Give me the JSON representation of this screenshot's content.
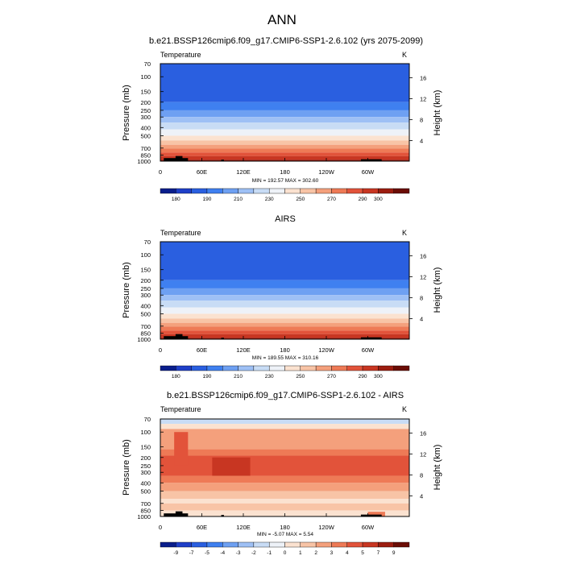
{
  "page": {
    "title": "ANN"
  },
  "panels": [
    {
      "title": "b.e21.BSSP126cmip6.f09_g17.CMIP6-SSP1-2.6.102 (yrs 2075-2099)",
      "variable": "Temperature",
      "units": "K",
      "stats": "MIN = 192.57  MAX = 302.60",
      "colorbar_labels": [
        "180",
        "190",
        "210",
        "230",
        "250",
        "270",
        "290",
        "300"
      ]
    },
    {
      "title": "AIRS",
      "variable": "Temperature",
      "units": "K",
      "stats": "MIN = 189.55  MAX = 310.16",
      "colorbar_labels": [
        "180",
        "190",
        "210",
        "230",
        "250",
        "270",
        "290",
        "300"
      ]
    },
    {
      "title": "b.e21.BSSP126cmip6.f09_g17.CMIP6-SSP1-2.6.102 - AIRS",
      "variable": "Temperature",
      "units": "K",
      "stats": "MIN =  -5.07  MAX =   5.54",
      "colorbar_labels": [
        "-9",
        "-7",
        "-5",
        "-4",
        "-3",
        "-2",
        "-1",
        "0",
        "1",
        "2",
        "3",
        "4",
        "5",
        "7",
        "9"
      ]
    }
  ],
  "axes": {
    "ylabel": "Pressure (mb)",
    "ylabel_right": "Height (km)",
    "pressure_ticks": [
      "70",
      "100",
      "150",
      "200",
      "250",
      "300",
      "400",
      "500",
      "700",
      "850",
      "1000"
    ],
    "height_ticks": [
      "16",
      "12",
      "8",
      "4"
    ],
    "lon_ticks": [
      "0",
      "60E",
      "120E",
      "180",
      "120W",
      "60W"
    ]
  },
  "chart_data": [
    {
      "type": "heatmap",
      "title": "b.e21.BSSP126cmip6.f09_g17.CMIP6-SSP1-2.6.102 (yrs 2075-2099)",
      "variable": "Temperature",
      "units": "K",
      "x": "longitude 0-360",
      "y": "pressure (mb)",
      "ylim": [
        1000,
        70
      ],
      "yscale": "log",
      "min": 192.57,
      "max": 302.6,
      "colorbar_levels": [
        180,
        185,
        190,
        200,
        210,
        220,
        230,
        240,
        250,
        260,
        270,
        280,
        290,
        295,
        300
      ],
      "colors": [
        "#0a1e8c",
        "#1f3fc8",
        "#2a5fe0",
        "#3f80f0",
        "#6ea0f2",
        "#9ec0f5",
        "#c8dcf5",
        "#eef2f8",
        "#fbe2d0",
        "#f8c4a6",
        "#f4a07c",
        "#ee7a56",
        "#e2533a",
        "#c83622",
        "#9c1d10",
        "#6b0d05"
      ]
    },
    {
      "type": "heatmap",
      "title": "AIRS",
      "variable": "Temperature",
      "units": "K",
      "x": "longitude 0-360",
      "y": "pressure (mb)",
      "ylim": [
        1000,
        70
      ],
      "yscale": "log",
      "min": 189.55,
      "max": 310.16,
      "colorbar_levels": [
        180,
        185,
        190,
        200,
        210,
        220,
        230,
        240,
        250,
        260,
        270,
        280,
        290,
        295,
        300
      ],
      "colors": [
        "#0a1e8c",
        "#1f3fc8",
        "#2a5fe0",
        "#3f80f0",
        "#6ea0f2",
        "#9ec0f5",
        "#c8dcf5",
        "#eef2f8",
        "#fbe2d0",
        "#f8c4a6",
        "#f4a07c",
        "#ee7a56",
        "#e2533a",
        "#c83622",
        "#9c1d10",
        "#6b0d05"
      ]
    },
    {
      "type": "heatmap",
      "title": "b.e21.BSSP126cmip6.f09_g17.CMIP6-SSP1-2.6.102 - AIRS",
      "variable": "Temperature",
      "units": "K",
      "x": "longitude 0-360",
      "y": "pressure (mb)",
      "ylim": [
        1000,
        70
      ],
      "yscale": "log",
      "min": -5.07,
      "max": 5.54,
      "colorbar_levels": [
        -9,
        -7,
        -5,
        -4,
        -3,
        -2,
        -1,
        0,
        1,
        2,
        3,
        4,
        5,
        7,
        9
      ],
      "colors": [
        "#0a1e8c",
        "#1f3fc8",
        "#2a5fe0",
        "#3f80f0",
        "#6ea0f2",
        "#9ec0f5",
        "#c8dcf5",
        "#eef2f8",
        "#fbe2d0",
        "#f8c4a6",
        "#f4a07c",
        "#ee7a56",
        "#e2533a",
        "#c83622",
        "#9c1d10",
        "#6b0d05"
      ]
    }
  ]
}
